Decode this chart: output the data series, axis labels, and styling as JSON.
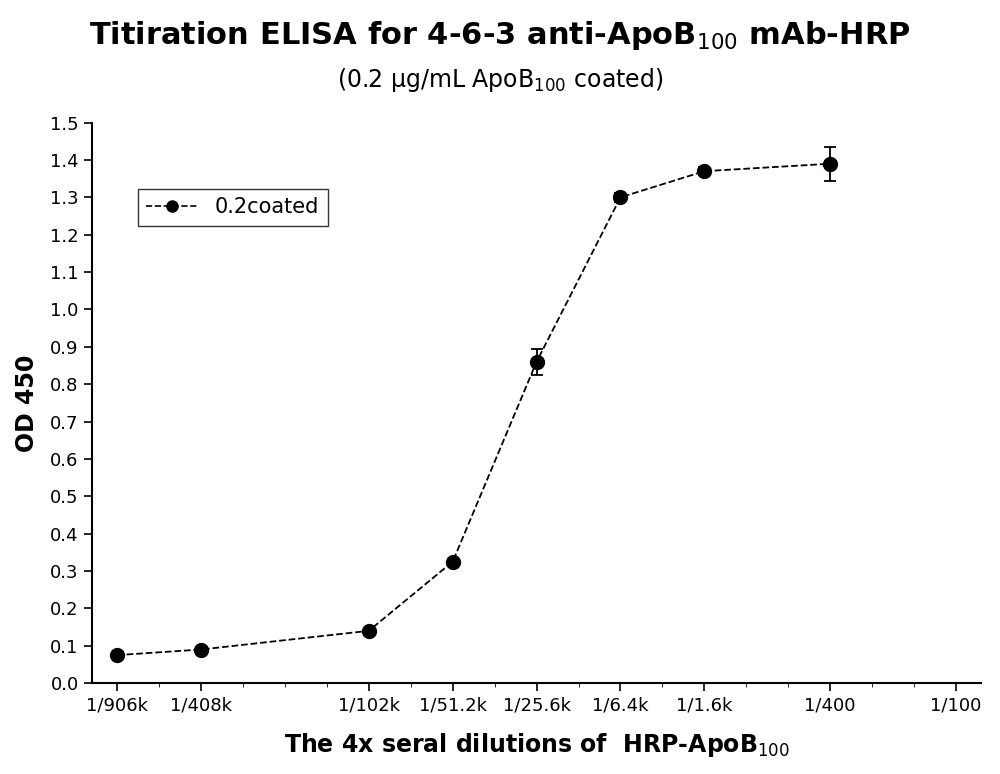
{
  "xlabel_main": "The 4x seral dilutions of  HRP-ApoB",
  "xlabel_sub": "100",
  "ylabel": "OD 450",
  "x_labels": [
    "1/906k",
    "1/408k",
    "1/102k",
    "1/51.2k",
    "1/25.6k",
    "1/6.4k",
    "1/1.6k",
    "1/400",
    "1/100"
  ],
  "x_positions": [
    0,
    1,
    3,
    4,
    5,
    6,
    7,
    8.5,
    10
  ],
  "data_x": [
    0,
    1,
    3,
    4,
    5,
    6,
    7,
    8.5
  ],
  "y_values": [
    0.075,
    0.09,
    0.14,
    0.325,
    0.86,
    1.3,
    1.37,
    1.39
  ],
  "y_errors": [
    0.004,
    0.004,
    0.007,
    0.008,
    0.035,
    0.012,
    0.01,
    0.045
  ],
  "ylim": [
    0.0,
    1.5
  ],
  "yticks": [
    0.0,
    0.1,
    0.2,
    0.3,
    0.4,
    0.5,
    0.6,
    0.7,
    0.8,
    0.9,
    1.0,
    1.1,
    1.2,
    1.3,
    1.4,
    1.5
  ],
  "legend_label": "0.2coated",
  "line_color": "#000000",
  "marker_color": "#000000",
  "line_style": "--",
  "marker_style": "o",
  "marker_size": 10,
  "background_color": "#ffffff",
  "title_fontsize": 22,
  "subtitle_fontsize": 17,
  "axis_label_fontsize": 17,
  "tick_fontsize": 13,
  "legend_fontsize": 15
}
